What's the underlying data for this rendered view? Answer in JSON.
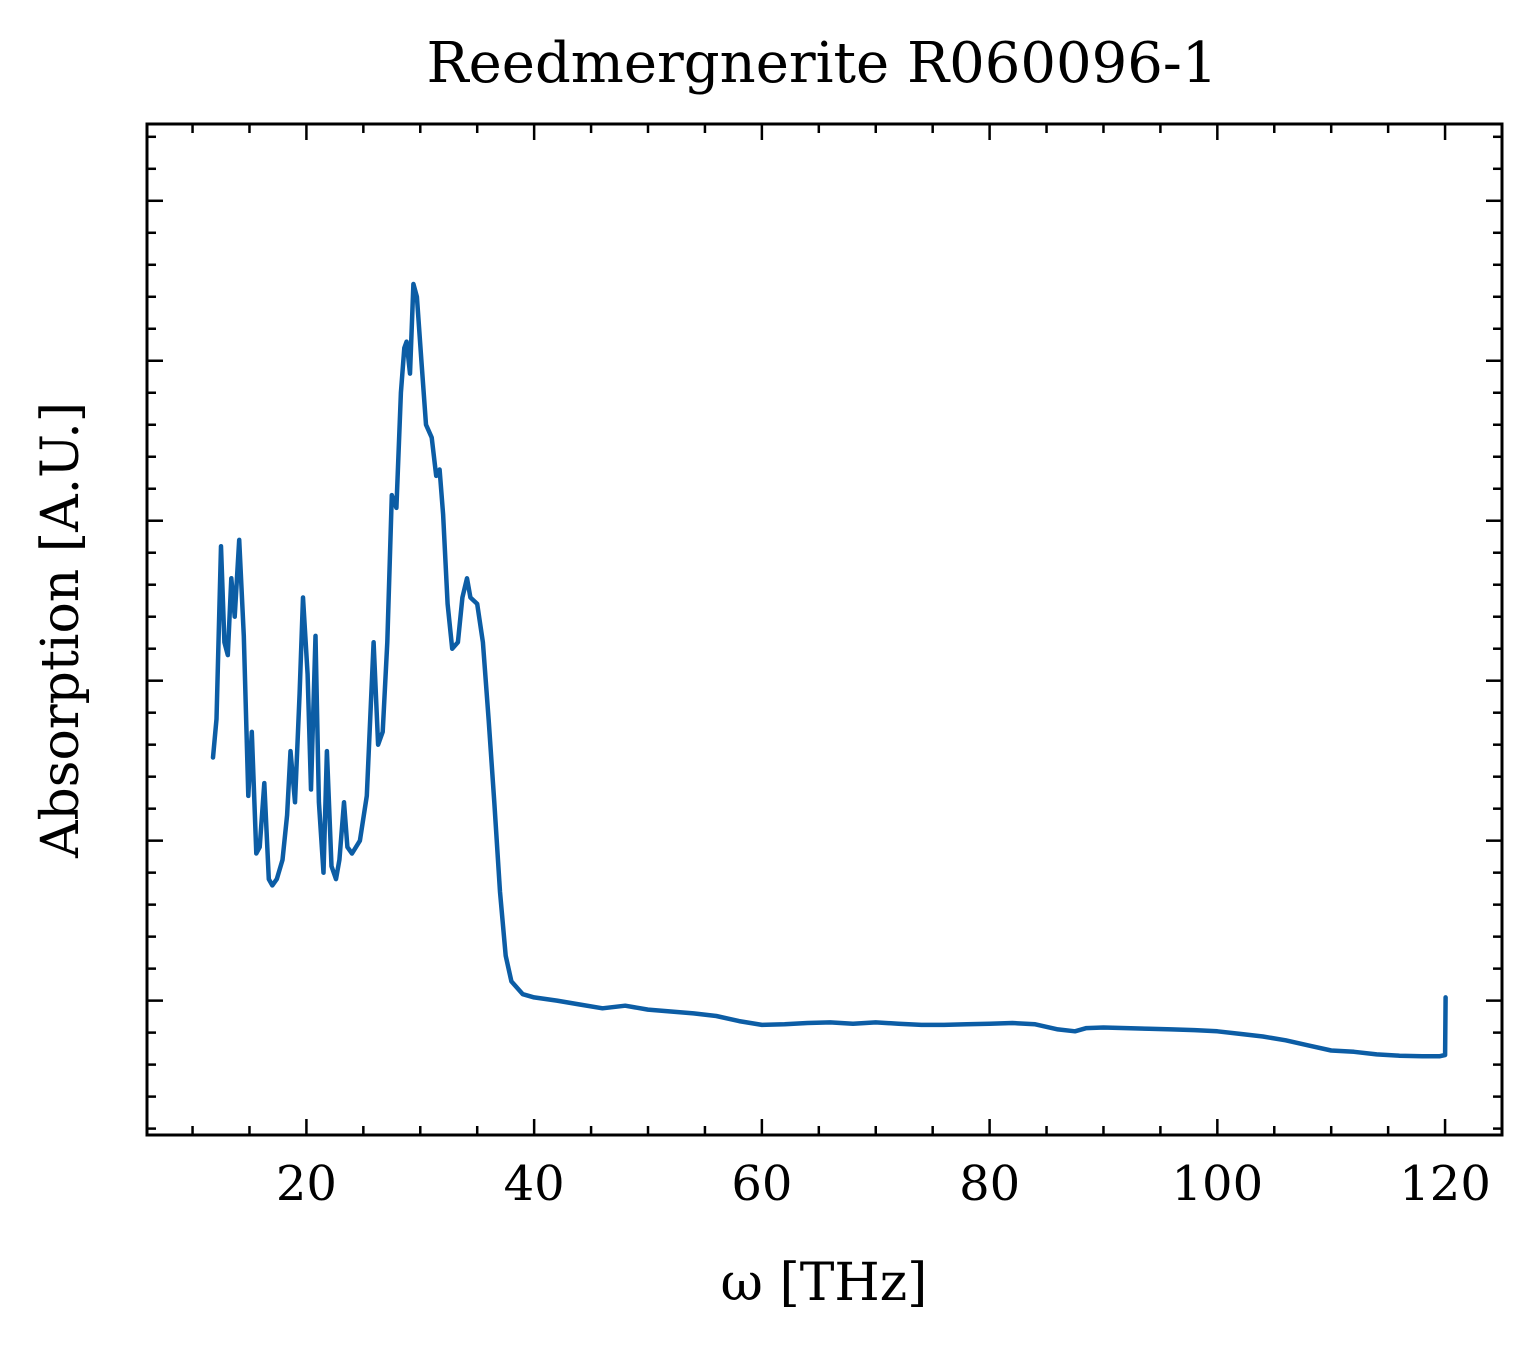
{
  "chart_data": {
    "type": "line",
    "title": "Reedmergnerite R060096-1",
    "xlabel": "ω [THz]",
    "ylabel": "Absorption [A.U.]",
    "xlim": [
      6,
      125
    ],
    "ylim": [
      -0.05,
      1.53
    ],
    "x_ticks": [
      20,
      40,
      60,
      80,
      100,
      120
    ],
    "y_ticks": [
      0.16,
      0.41,
      0.66,
      0.91,
      1.16,
      1.41
    ],
    "y_tick_labels_visible": false,
    "minor_ticks": true,
    "ticks_direction": "in",
    "grid": false,
    "legend": "none",
    "colors": {
      "line": "#0c5da5",
      "axes": "#000000",
      "background": "#ffffff"
    },
    "series": [
      {
        "points": [
          [
            11.8,
            0.54
          ],
          [
            12.1,
            0.6
          ],
          [
            12.5,
            0.87
          ],
          [
            12.8,
            0.72
          ],
          [
            13.1,
            0.7
          ],
          [
            13.4,
            0.82
          ],
          [
            13.7,
            0.76
          ],
          [
            14.1,
            0.88
          ],
          [
            14.5,
            0.73
          ],
          [
            14.9,
            0.48
          ],
          [
            15.2,
            0.58
          ],
          [
            15.6,
            0.39
          ],
          [
            15.9,
            0.4
          ],
          [
            16.3,
            0.5
          ],
          [
            16.7,
            0.35
          ],
          [
            17.0,
            0.34
          ],
          [
            17.4,
            0.35
          ],
          [
            17.9,
            0.38
          ],
          [
            18.3,
            0.45
          ],
          [
            18.6,
            0.55
          ],
          [
            19.0,
            0.47
          ],
          [
            19.4,
            0.64
          ],
          [
            19.7,
            0.79
          ],
          [
            20.1,
            0.67
          ],
          [
            20.4,
            0.49
          ],
          [
            20.8,
            0.73
          ],
          [
            21.1,
            0.47
          ],
          [
            21.5,
            0.36
          ],
          [
            21.8,
            0.55
          ],
          [
            22.2,
            0.37
          ],
          [
            22.6,
            0.35
          ],
          [
            22.9,
            0.38
          ],
          [
            23.3,
            0.47
          ],
          [
            23.6,
            0.4
          ],
          [
            24.0,
            0.39
          ],
          [
            24.7,
            0.41
          ],
          [
            25.3,
            0.48
          ],
          [
            25.9,
            0.72
          ],
          [
            26.3,
            0.56
          ],
          [
            26.7,
            0.58
          ],
          [
            27.1,
            0.72
          ],
          [
            27.5,
            0.95
          ],
          [
            27.9,
            0.93
          ],
          [
            28.3,
            1.11
          ],
          [
            28.6,
            1.18
          ],
          [
            28.8,
            1.19
          ],
          [
            29.1,
            1.14
          ],
          [
            29.4,
            1.28
          ],
          [
            29.7,
            1.26
          ],
          [
            30.1,
            1.16
          ],
          [
            30.5,
            1.06
          ],
          [
            31.0,
            1.04
          ],
          [
            31.4,
            0.98
          ],
          [
            31.7,
            0.99
          ],
          [
            32.0,
            0.92
          ],
          [
            32.4,
            0.78
          ],
          [
            32.8,
            0.71
          ],
          [
            33.3,
            0.72
          ],
          [
            33.7,
            0.79
          ],
          [
            34.1,
            0.82
          ],
          [
            34.4,
            0.79
          ],
          [
            35.0,
            0.78
          ],
          [
            35.5,
            0.72
          ],
          [
            36.0,
            0.6
          ],
          [
            36.5,
            0.47
          ],
          [
            37.0,
            0.33
          ],
          [
            37.5,
            0.23
          ],
          [
            38.0,
            0.19
          ],
          [
            39.0,
            0.17
          ],
          [
            40.0,
            0.165
          ],
          [
            42.0,
            0.16
          ],
          [
            44.0,
            0.154
          ],
          [
            46.0,
            0.148
          ],
          [
            48.0,
            0.152
          ],
          [
            50.0,
            0.146
          ],
          [
            52.0,
            0.143
          ],
          [
            54.0,
            0.14
          ],
          [
            56.0,
            0.136
          ],
          [
            58.0,
            0.128
          ],
          [
            60.0,
            0.122
          ],
          [
            62.0,
            0.123
          ],
          [
            64.0,
            0.125
          ],
          [
            66.0,
            0.126
          ],
          [
            68.0,
            0.124
          ],
          [
            70.0,
            0.126
          ],
          [
            72.0,
            0.124
          ],
          [
            74.0,
            0.122
          ],
          [
            76.0,
            0.122
          ],
          [
            78.0,
            0.123
          ],
          [
            80.0,
            0.124
          ],
          [
            82.0,
            0.125
          ],
          [
            84.0,
            0.123
          ],
          [
            86.0,
            0.115
          ],
          [
            87.5,
            0.112
          ],
          [
            88.5,
            0.117
          ],
          [
            90.0,
            0.118
          ],
          [
            92.0,
            0.117
          ],
          [
            94.0,
            0.116
          ],
          [
            96.0,
            0.115
          ],
          [
            98.0,
            0.114
          ],
          [
            100.0,
            0.112
          ],
          [
            102.0,
            0.108
          ],
          [
            104.0,
            0.104
          ],
          [
            106.0,
            0.098
          ],
          [
            108.0,
            0.09
          ],
          [
            110.0,
            0.082
          ],
          [
            112.0,
            0.08
          ],
          [
            114.0,
            0.076
          ],
          [
            116.0,
            0.074
          ],
          [
            118.0,
            0.073
          ],
          [
            119.5,
            0.073
          ],
          [
            120.0,
            0.075
          ],
          [
            120.05,
            0.165
          ]
        ]
      }
    ]
  }
}
